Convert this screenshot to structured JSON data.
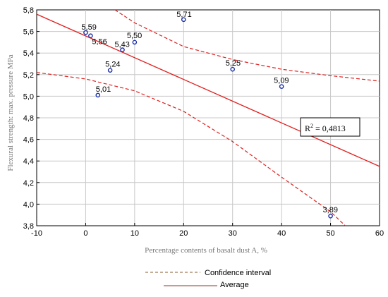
{
  "chart_data": {
    "type": "scatter",
    "xlabel": "Percentage contents of basalt dust A, %",
    "ylabel": "Flexural strength: max. pressure MPa",
    "xlim": [
      -10,
      60
    ],
    "ylim": [
      3.8,
      5.8
    ],
    "x_ticks": [
      "-10",
      "0",
      "10",
      "20",
      "30",
      "40",
      "50",
      "60"
    ],
    "y_ticks": [
      "3,8",
      "4,0",
      "4,2",
      "4,4",
      "4,6",
      "4,8",
      "5,0",
      "5,2",
      "5,4",
      "5,6",
      "5,8"
    ],
    "grid": true,
    "points": [
      {
        "x": 0,
        "y": 5.59,
        "label": "5,59"
      },
      {
        "x": 1,
        "y": 5.56,
        "label": "5,56"
      },
      {
        "x": 2.5,
        "y": 5.01,
        "label": "5,01"
      },
      {
        "x": 5,
        "y": 5.24,
        "label": "5,24"
      },
      {
        "x": 7.5,
        "y": 5.43,
        "label": "5,43"
      },
      {
        "x": 10,
        "y": 5.5,
        "label": "5,50"
      },
      {
        "x": 20,
        "y": 5.71,
        "label": "5,71"
      },
      {
        "x": 30,
        "y": 5.25,
        "label": "5,25"
      },
      {
        "x": 40,
        "y": 5.09,
        "label": "5,09"
      },
      {
        "x": 50,
        "y": 3.89,
        "label": "3,89"
      }
    ],
    "regression": {
      "x": [
        -10,
        60
      ],
      "y": [
        5.76,
        4.35
      ]
    },
    "confidence_upper": {
      "x": [
        5,
        10,
        20,
        30,
        40,
        50,
        60
      ],
      "y": [
        5.83,
        5.68,
        5.46,
        5.34,
        5.25,
        5.19,
        5.14
      ]
    },
    "confidence_lower": {
      "x": [
        -10,
        0,
        10,
        20,
        30,
        40,
        50,
        53
      ],
      "y": [
        5.22,
        5.16,
        5.05,
        4.86,
        4.58,
        4.25,
        3.93,
        3.8
      ]
    },
    "annotation": {
      "prefix": "R",
      "sup": "2",
      "value": " = 0,4813"
    },
    "legend": [
      {
        "label": "Confidence interval",
        "style": "dashed",
        "color": "#8B5A2B"
      },
      {
        "label": "Average",
        "style": "solid",
        "color": "#8B3A2A"
      }
    ],
    "colors": {
      "point": "#1a2fa8",
      "regression": "#e02020",
      "confidence": "#e02020",
      "grid": "#c8c8c8",
      "axis": "#000000"
    }
  }
}
